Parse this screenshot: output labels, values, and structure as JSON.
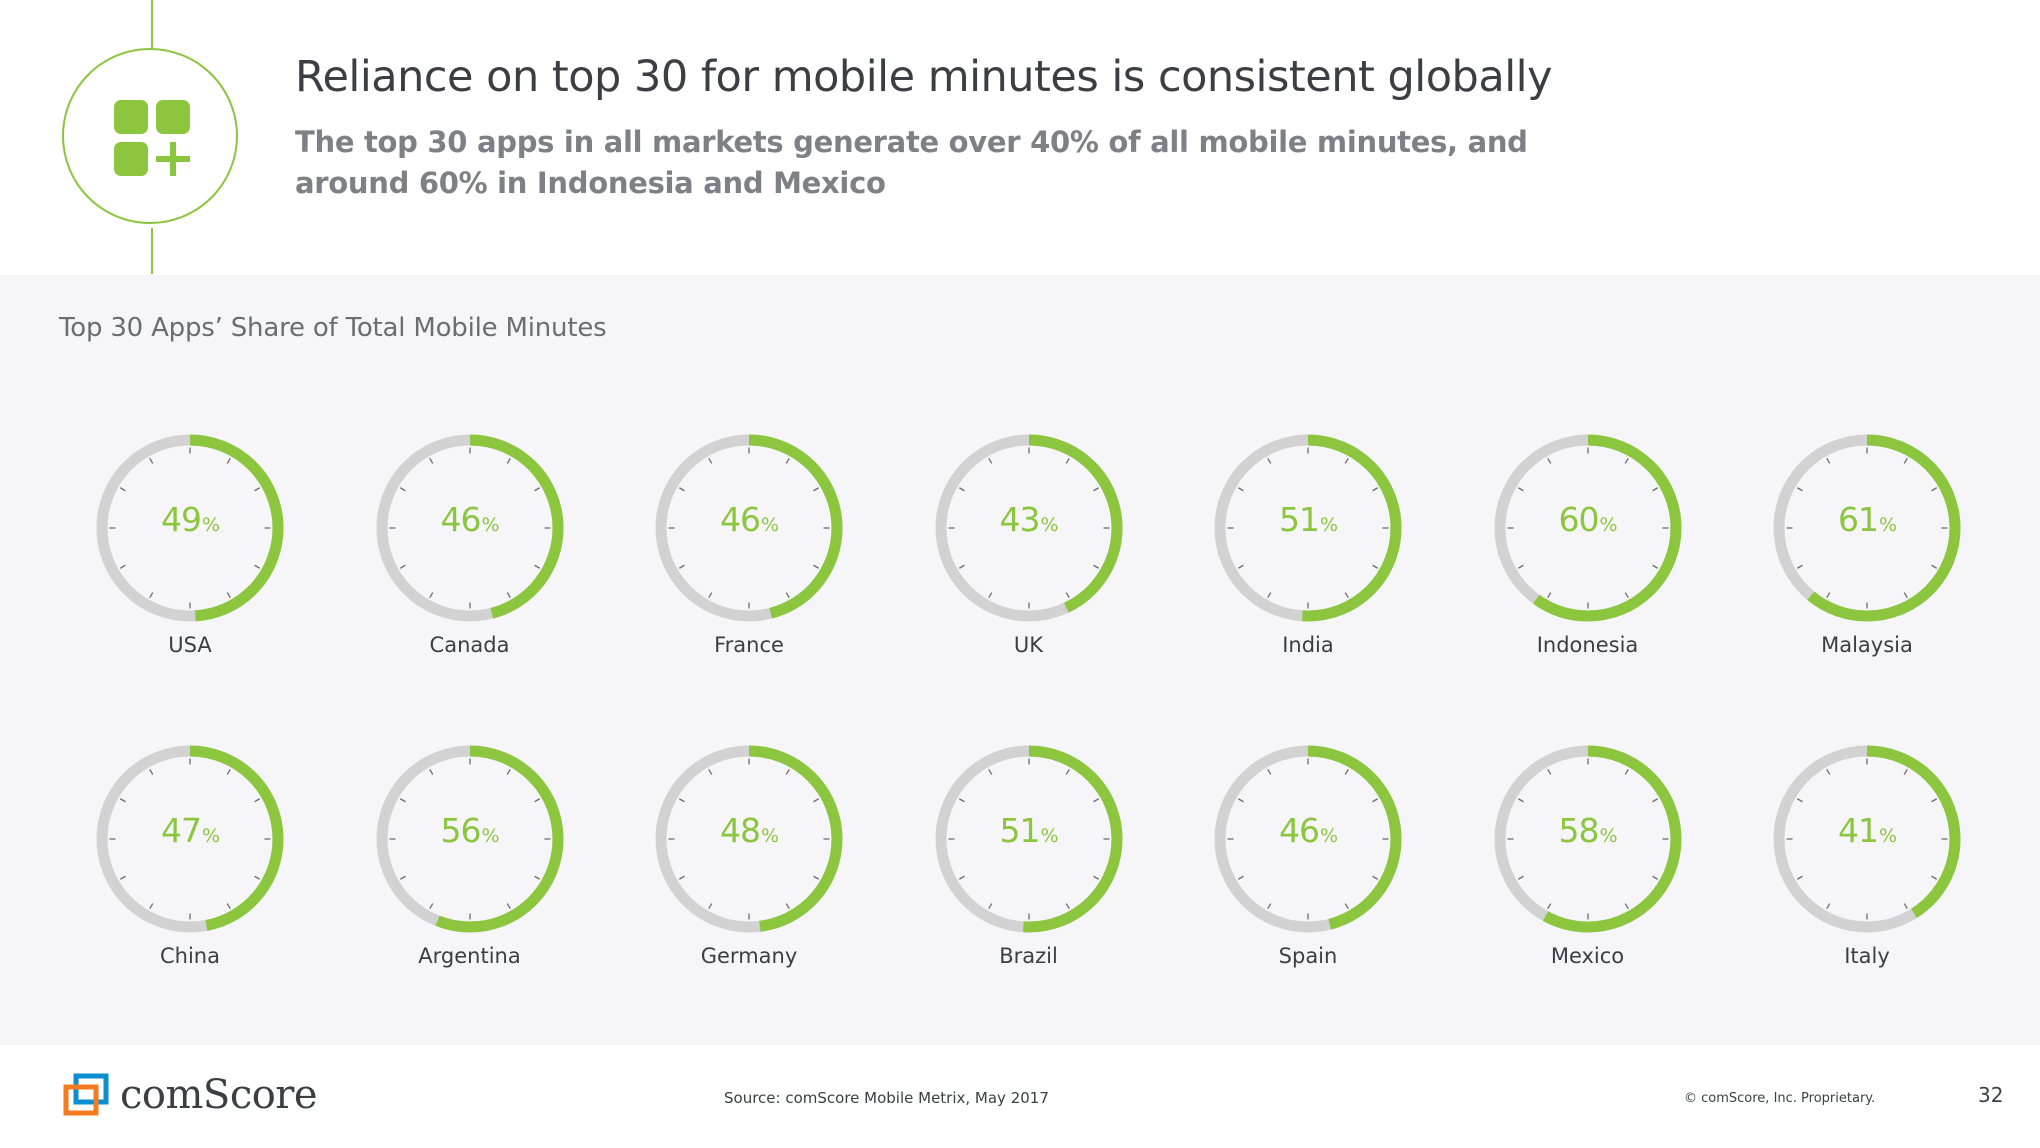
{
  "header": {
    "title": "Reliance on top 30 for mobile minutes is consistent globally",
    "subtitle": "The top 30 apps in all markets generate over 40% of all mobile minutes, and around 60% in Indonesia and Mexico",
    "icon": "apps-add-icon"
  },
  "chart_data": {
    "type": "gauge",
    "title": "Top 30 Apps’ Share of Total Mobile Minutes",
    "unit": "%",
    "categories": [
      "USA",
      "Canada",
      "France",
      "UK",
      "India",
      "Indonesia",
      "Malaysia",
      "China",
      "Argentina",
      "Germany",
      "Brazil",
      "Spain",
      "Mexico",
      "Italy"
    ],
    "values": [
      49,
      46,
      46,
      43,
      51,
      60,
      61,
      47,
      56,
      48,
      51,
      46,
      58,
      41
    ],
    "max": 100,
    "colors": {
      "filled": "#8cc63f",
      "track": "#d2d2d2",
      "ticks": "#6e6e6e"
    }
  },
  "footer": {
    "logo_text": "comScore",
    "source": "Source: comScore Mobile Metrix, May 2017",
    "copyright": "© comScore, Inc. Proprietary.",
    "page_number": "32"
  },
  "colors": {
    "accent": "#8cc63f",
    "panel_background": "#f6f6f8",
    "title": "#3b3f44",
    "subtitle": "#7d8186",
    "logo_orange": "#f47b20",
    "logo_blue": "#0b8fd0"
  }
}
